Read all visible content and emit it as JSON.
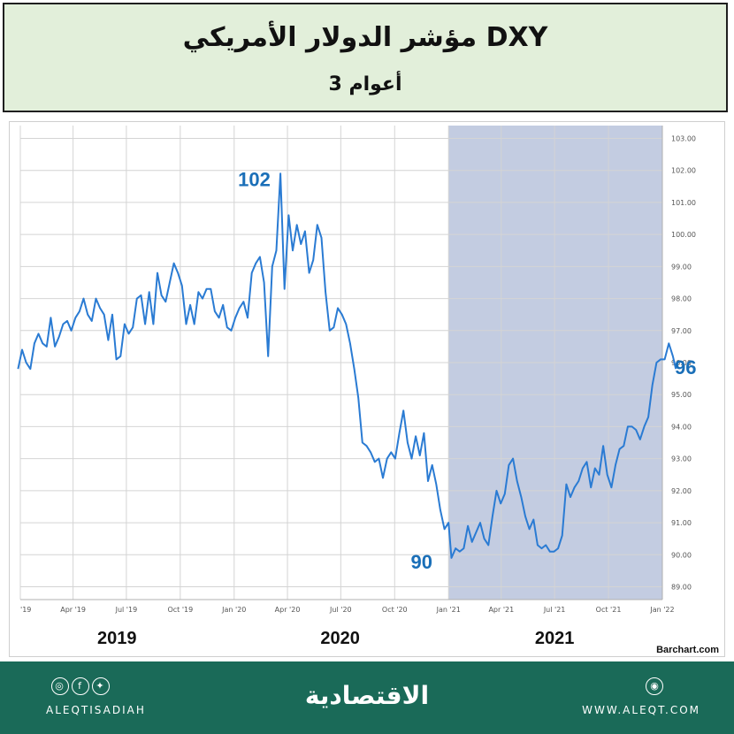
{
  "header": {
    "title": "مؤشر الدولار الأمريكي DXY",
    "subtitle": "3 أعوام"
  },
  "chart_data": {
    "type": "line",
    "title": "",
    "xlabel": "",
    "ylabel": "",
    "x_tick_labels": [
      "'19",
      "Apr '19",
      "Jul '19",
      "Oct '19",
      "Jan '20",
      "Apr '20",
      "Jul '20",
      "Oct '20",
      "Jan '21",
      "Apr '21",
      "Jul '21",
      "Oct '21",
      "Jan '22"
    ],
    "y_tick_labels": [
      "89.00",
      "90.00",
      "91.00",
      "92.00",
      "93.00",
      "94.00",
      "95.00",
      "96.00",
      "97.00",
      "98.00",
      "99.00",
      "100.00",
      "101.00",
      "102.00",
      "103.00"
    ],
    "ylim": [
      88.6,
      103.4
    ],
    "year_labels": [
      "2019",
      "2020",
      "2021"
    ],
    "highlight_range": [
      "Jan '21",
      "Jan '22"
    ],
    "highlight_color": "#b8c3dc",
    "line_color": "#2a7bd3",
    "annotation_color": "#1a6fb8",
    "annotations": [
      {
        "label": "102",
        "date": "2020-03-20",
        "value": 101.9
      },
      {
        "label": "90",
        "date": "2021-01-06",
        "value": 89.9
      },
      {
        "label": "96",
        "date": "2022-01-01",
        "value": 95.8
      }
    ],
    "source": "Barchart.com",
    "series": [
      {
        "points": [
          [
            "2018-12-28",
            95.8
          ],
          [
            "2019-01-04",
            96.4
          ],
          [
            "2019-01-11",
            96.0
          ],
          [
            "2019-01-18",
            95.8
          ],
          [
            "2019-01-25",
            96.6
          ],
          [
            "2019-02-01",
            96.9
          ],
          [
            "2019-02-08",
            96.6
          ],
          [
            "2019-02-15",
            96.5
          ],
          [
            "2019-02-22",
            97.4
          ],
          [
            "2019-03-01",
            96.5
          ],
          [
            "2019-03-08",
            96.8
          ],
          [
            "2019-03-15",
            97.2
          ],
          [
            "2019-03-22",
            97.3
          ],
          [
            "2019-03-29",
            97.0
          ],
          [
            "2019-04-05",
            97.4
          ],
          [
            "2019-04-12",
            97.6
          ],
          [
            "2019-04-19",
            98.0
          ],
          [
            "2019-04-26",
            97.5
          ],
          [
            "2019-05-03",
            97.3
          ],
          [
            "2019-05-10",
            98.0
          ],
          [
            "2019-05-17",
            97.7
          ],
          [
            "2019-05-24",
            97.5
          ],
          [
            "2019-05-31",
            96.7
          ],
          [
            "2019-06-07",
            97.5
          ],
          [
            "2019-06-14",
            96.1
          ],
          [
            "2019-06-21",
            96.2
          ],
          [
            "2019-06-28",
            97.2
          ],
          [
            "2019-07-05",
            96.9
          ],
          [
            "2019-07-12",
            97.1
          ],
          [
            "2019-07-19",
            98.0
          ],
          [
            "2019-07-26",
            98.1
          ],
          [
            "2019-08-02",
            97.2
          ],
          [
            "2019-08-09",
            98.2
          ],
          [
            "2019-08-16",
            97.2
          ],
          [
            "2019-08-23",
            98.8
          ],
          [
            "2019-08-30",
            98.1
          ],
          [
            "2019-09-06",
            97.9
          ],
          [
            "2019-09-13",
            98.5
          ],
          [
            "2019-09-20",
            99.1
          ],
          [
            "2019-09-27",
            98.8
          ],
          [
            "2019-10-04",
            98.4
          ],
          [
            "2019-10-11",
            97.2
          ],
          [
            "2019-10-18",
            97.8
          ],
          [
            "2019-10-25",
            97.2
          ],
          [
            "2019-11-01",
            98.2
          ],
          [
            "2019-11-08",
            98.0
          ],
          [
            "2019-11-15",
            98.3
          ],
          [
            "2019-11-22",
            98.3
          ],
          [
            "2019-11-29",
            97.6
          ],
          [
            "2019-12-06",
            97.4
          ],
          [
            "2019-12-13",
            97.8
          ],
          [
            "2019-12-20",
            97.1
          ],
          [
            "2019-12-27",
            97.0
          ],
          [
            "2020-01-03",
            97.4
          ],
          [
            "2020-01-10",
            97.7
          ],
          [
            "2020-01-17",
            97.9
          ],
          [
            "2020-01-24",
            97.4
          ],
          [
            "2020-01-31",
            98.8
          ],
          [
            "2020-02-07",
            99.1
          ],
          [
            "2020-02-14",
            99.3
          ],
          [
            "2020-02-21",
            98.5
          ],
          [
            "2020-02-28",
            96.2
          ],
          [
            "2020-03-06",
            99.0
          ],
          [
            "2020-03-13",
            99.5
          ],
          [
            "2020-03-20",
            101.9
          ],
          [
            "2020-03-27",
            98.3
          ],
          [
            "2020-04-03",
            100.6
          ],
          [
            "2020-04-10",
            99.5
          ],
          [
            "2020-04-17",
            100.3
          ],
          [
            "2020-04-24",
            99.7
          ],
          [
            "2020-05-01",
            100.1
          ],
          [
            "2020-05-08",
            98.8
          ],
          [
            "2020-05-15",
            99.2
          ],
          [
            "2020-05-22",
            100.3
          ],
          [
            "2020-05-29",
            99.9
          ],
          [
            "2020-06-05",
            98.2
          ],
          [
            "2020-06-12",
            97.0
          ],
          [
            "2020-06-19",
            97.1
          ],
          [
            "2020-06-26",
            97.7
          ],
          [
            "2020-07-03",
            97.5
          ],
          [
            "2020-07-10",
            97.2
          ],
          [
            "2020-07-17",
            96.6
          ],
          [
            "2020-07-24",
            95.8
          ],
          [
            "2020-07-31",
            94.9
          ],
          [
            "2020-08-07",
            93.5
          ],
          [
            "2020-08-14",
            93.4
          ],
          [
            "2020-08-21",
            93.2
          ],
          [
            "2020-08-28",
            92.9
          ],
          [
            "2020-09-04",
            93.0
          ],
          [
            "2020-09-11",
            92.4
          ],
          [
            "2020-09-18",
            93.0
          ],
          [
            "2020-09-25",
            93.2
          ],
          [
            "2020-10-02",
            93.0
          ],
          [
            "2020-10-09",
            93.8
          ],
          [
            "2020-10-16",
            94.5
          ],
          [
            "2020-10-23",
            93.5
          ],
          [
            "2020-10-30",
            93.0
          ],
          [
            "2020-11-06",
            93.7
          ],
          [
            "2020-11-13",
            93.1
          ],
          [
            "2020-11-20",
            93.8
          ],
          [
            "2020-11-27",
            92.3
          ],
          [
            "2020-12-04",
            92.8
          ],
          [
            "2020-12-11",
            92.2
          ],
          [
            "2020-12-18",
            91.4
          ],
          [
            "2020-12-25",
            90.8
          ],
          [
            "2021-01-01",
            91.0
          ],
          [
            "2021-01-06",
            89.9
          ],
          [
            "2021-01-13",
            90.2
          ],
          [
            "2021-01-20",
            90.1
          ],
          [
            "2021-01-27",
            90.2
          ],
          [
            "2021-02-03",
            90.9
          ],
          [
            "2021-02-10",
            90.4
          ],
          [
            "2021-02-17",
            90.7
          ],
          [
            "2021-02-24",
            91.0
          ],
          [
            "2021-03-03",
            90.5
          ],
          [
            "2021-03-10",
            90.3
          ],
          [
            "2021-03-17",
            91.2
          ],
          [
            "2021-03-24",
            92.0
          ],
          [
            "2021-03-31",
            91.6
          ],
          [
            "2021-04-07",
            91.9
          ],
          [
            "2021-04-14",
            92.8
          ],
          [
            "2021-04-21",
            93.0
          ],
          [
            "2021-04-28",
            92.3
          ],
          [
            "2021-05-05",
            91.8
          ],
          [
            "2021-05-12",
            91.2
          ],
          [
            "2021-05-19",
            90.8
          ],
          [
            "2021-05-26",
            91.1
          ],
          [
            "2021-06-02",
            90.3
          ],
          [
            "2021-06-09",
            90.2
          ],
          [
            "2021-06-16",
            90.3
          ],
          [
            "2021-06-23",
            90.1
          ],
          [
            "2021-06-30",
            90.1
          ],
          [
            "2021-07-07",
            90.2
          ],
          [
            "2021-07-14",
            90.6
          ],
          [
            "2021-07-21",
            92.2
          ],
          [
            "2021-07-28",
            91.8
          ],
          [
            "2021-08-04",
            92.1
          ],
          [
            "2021-08-11",
            92.3
          ],
          [
            "2021-08-18",
            92.7
          ],
          [
            "2021-08-25",
            92.9
          ],
          [
            "2021-09-01",
            92.1
          ],
          [
            "2021-09-08",
            92.7
          ],
          [
            "2021-09-15",
            92.5
          ],
          [
            "2021-09-22",
            93.4
          ],
          [
            "2021-09-29",
            92.5
          ],
          [
            "2021-10-06",
            92.1
          ],
          [
            "2021-10-13",
            92.8
          ],
          [
            "2021-10-20",
            93.3
          ],
          [
            "2021-10-27",
            93.4
          ],
          [
            "2021-11-03",
            94.0
          ],
          [
            "2021-11-10",
            94.0
          ],
          [
            "2021-11-17",
            93.9
          ],
          [
            "2021-11-24",
            93.6
          ],
          [
            "2021-12-01",
            94.0
          ],
          [
            "2021-12-08",
            94.3
          ],
          [
            "2021-12-15",
            95.3
          ],
          [
            "2021-12-22",
            96.0
          ],
          [
            "2021-12-29",
            96.1
          ],
          [
            "2022-01-05",
            96.1
          ],
          [
            "2022-01-12",
            96.6
          ],
          [
            "2022-01-19",
            96.2
          ],
          [
            "2022-01-24",
            95.8
          ]
        ]
      }
    ]
  },
  "footer": {
    "social_icons": [
      "instagram-icon",
      "facebook-icon",
      "twitter-icon"
    ],
    "handle": "ALEQTISADIAH",
    "logo": "الاقتصادية",
    "website_icon": "rss-icon",
    "website": "WWW.ALEQT.COM"
  }
}
